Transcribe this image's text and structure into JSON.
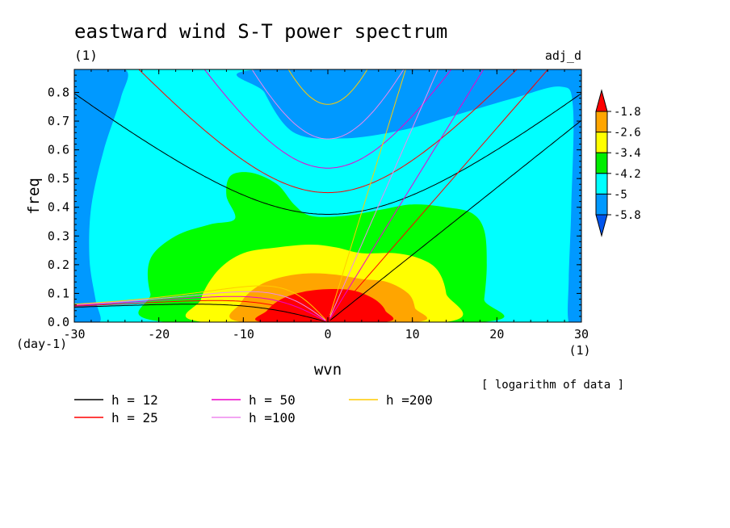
{
  "chart_data": {
    "type": "heatmap",
    "title": "eastward wind S-T power spectrum",
    "x_unit_label": "(1)",
    "y_unit_label": "(1)",
    "y_unit_side_label": "(day-1)",
    "x_unit_side_label": "(1)",
    "run_label": "adj_d",
    "xlabel": "wvn",
    "ylabel": "freq",
    "note": "[ logarithm of data ]",
    "xlim": [
      -30,
      30
    ],
    "ylim": [
      0.0,
      0.88
    ],
    "x_ticks": [
      -30,
      -20,
      -10,
      0,
      10,
      20,
      30
    ],
    "x_tick_labels": [
      "-30",
      "-20",
      "-10",
      "0",
      "10",
      "20",
      "30"
    ],
    "y_ticks": [
      0.0,
      0.1,
      0.2,
      0.3,
      0.4,
      0.5,
      0.6,
      0.7,
      0.8
    ],
    "y_tick_labels": [
      "0.0",
      "0.1",
      "0.2",
      "0.3",
      "0.4",
      "0.5",
      "0.6",
      "0.7",
      "0.8"
    ],
    "colorbar": {
      "levels": [
        -1.8,
        -2.6,
        -3.4,
        -4.2,
        -5,
        -5.8
      ],
      "level_labels": [
        "-1.8",
        "-2.6",
        "-3.4",
        "-4.2",
        "-5",
        "-5.8"
      ],
      "colors": [
        "#ff0000",
        "#ffa500",
        "#ffff00",
        "#00ee00",
        "#00ffff",
        "#0099ff",
        "#0055ee"
      ]
    },
    "contour_regions": [
      {
        "level": "< -5.8",
        "color": "#0055ee",
        "polygon": [
          [
            -6,
            0.88
          ],
          [
            20,
            0.88
          ],
          [
            18,
            0.84
          ],
          [
            10,
            0.79
          ],
          [
            2,
            0.76
          ],
          [
            -4,
            0.77
          ],
          [
            -5.5,
            0.82
          ]
        ]
      },
      {
        "level": "-5.8 to -5",
        "color": "#0099ff",
        "polygon": [
          [
            -30,
            0
          ],
          [
            -30,
            0.88
          ],
          [
            -24,
            0.88
          ],
          [
            -24.5,
            0.78
          ],
          [
            -26.5,
            0.6
          ],
          [
            -28,
            0.4
          ],
          [
            -28.2,
            0.22
          ],
          [
            -27.5,
            0.08
          ],
          [
            -27,
            0
          ]
        ]
      },
      {
        "level": "-5.8 to -5",
        "color": "#0099ff",
        "polygon": [
          [
            -8,
            0.88
          ],
          [
            30,
            0.88
          ],
          [
            30,
            0
          ],
          [
            28.5,
            0
          ],
          [
            28.5,
            0.15
          ],
          [
            28.8,
            0.4
          ],
          [
            29,
            0.75
          ],
          [
            27.5,
            0.82
          ],
          [
            22,
            0.78
          ],
          [
            15,
            0.72
          ],
          [
            9,
            0.67
          ],
          [
            2,
            0.64
          ],
          [
            -4,
            0.66
          ],
          [
            -7.5,
            0.8
          ]
        ]
      },
      {
        "level": "-5 to -4.2",
        "color": "#00ffff",
        "polygon": [
          [
            -30,
            0
          ],
          [
            -30,
            0.88
          ],
          [
            30,
            0.88
          ],
          [
            30,
            0
          ]
        ]
      },
      {
        "level": "-4.2 to -3.4",
        "color": "#00ff00",
        "polygon": [
          [
            -19,
            0
          ],
          [
            -21,
            0.1
          ],
          [
            -21,
            0.22
          ],
          [
            -18,
            0.3
          ],
          [
            -14,
            0.34
          ],
          [
            -11,
            0.36
          ],
          [
            -12,
            0.44
          ],
          [
            -11.5,
            0.51
          ],
          [
            -9,
            0.52
          ],
          [
            -6,
            0.48
          ],
          [
            -4,
            0.41
          ],
          [
            -2,
            0.37
          ],
          [
            2,
            0.37
          ],
          [
            6,
            0.39
          ],
          [
            10,
            0.41
          ],
          [
            14,
            0.4
          ],
          [
            17,
            0.38
          ],
          [
            18.5,
            0.32
          ],
          [
            18.8,
            0.2
          ],
          [
            18.5,
            0.08
          ],
          [
            18,
            0
          ]
        ]
      },
      {
        "level": "-3.4 to -2.6",
        "color": "#ffff00",
        "polygon": [
          [
            -14.5,
            0
          ],
          [
            -15,
            0.08
          ],
          [
            -13,
            0.18
          ],
          [
            -10,
            0.24
          ],
          [
            -6,
            0.26
          ],
          [
            -2,
            0.27
          ],
          [
            1,
            0.26
          ],
          [
            4,
            0.24
          ],
          [
            8,
            0.24
          ],
          [
            11,
            0.22
          ],
          [
            13,
            0.18
          ],
          [
            14,
            0.1
          ],
          [
            13.8,
            0
          ]
        ]
      },
      {
        "level": "-2.6 to -1.8",
        "color": "#ffa500",
        "polygon": [
          [
            -10,
            0
          ],
          [
            -10.2,
            0.07
          ],
          [
            -8,
            0.13
          ],
          [
            -5,
            0.16
          ],
          [
            -2,
            0.17
          ],
          [
            1,
            0.165
          ],
          [
            4,
            0.15
          ],
          [
            7,
            0.14
          ],
          [
            9.5,
            0.1
          ],
          [
            10.3,
            0.05
          ],
          [
            10.2,
            0
          ]
        ]
      },
      {
        "level": "> -1.8",
        "color": "#ff0000",
        "polygon": [
          [
            -7.6,
            0
          ],
          [
            -7.2,
            0.04
          ],
          [
            -5.5,
            0.08
          ],
          [
            -3,
            0.105
          ],
          [
            0,
            0.115
          ],
          [
            3,
            0.11
          ],
          [
            5.5,
            0.08
          ],
          [
            6.8,
            0.04
          ],
          [
            6.6,
            0
          ]
        ]
      }
    ],
    "series": [
      {
        "name": "h = 12",
        "color": "#000000",
        "h": 12
      },
      {
        "name": "h = 25",
        "color": "#ff0000",
        "h": 25
      },
      {
        "name": "h = 50",
        "color": "#ee00cc",
        "h": 50
      },
      {
        "name": "h =100",
        "color": "#ee88ee",
        "h": 100
      },
      {
        "name": "h =200",
        "color": "#ffcc00",
        "h": 200
      }
    ],
    "legend_position": "bottom"
  }
}
